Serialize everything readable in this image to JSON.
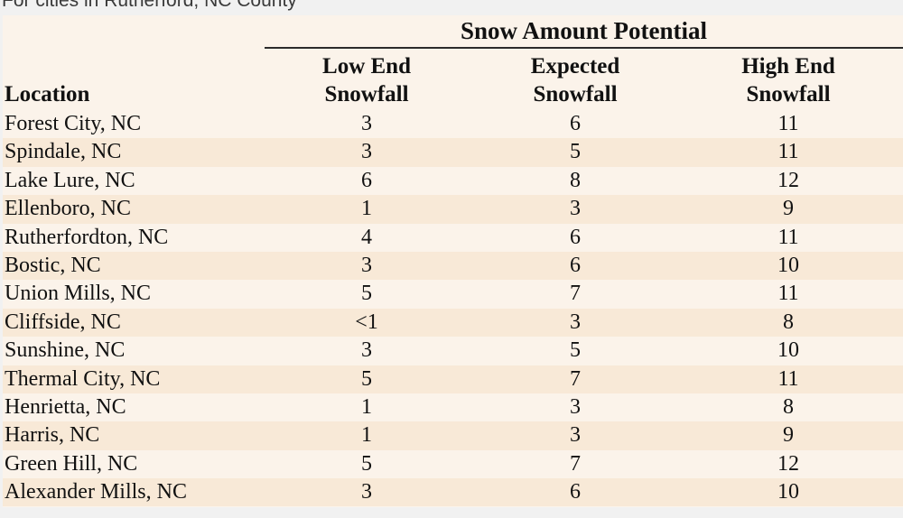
{
  "caption": "For cities in Rutherford, NC County",
  "table": {
    "group_header": "Snow Amount Potential",
    "location_header": "Location",
    "columns": [
      {
        "line1": "Low End",
        "line2": "Snowfall"
      },
      {
        "line1": "Expected",
        "line2": "Snowfall"
      },
      {
        "line1": "High End",
        "line2": "Snowfall"
      }
    ],
    "rows": [
      {
        "location": "Forest City, NC",
        "low": "3",
        "expected": "6",
        "high": "11"
      },
      {
        "location": "Spindale, NC",
        "low": "3",
        "expected": "5",
        "high": "11"
      },
      {
        "location": "Lake Lure, NC",
        "low": "6",
        "expected": "8",
        "high": "12"
      },
      {
        "location": "Ellenboro, NC",
        "low": "1",
        "expected": "3",
        "high": "9"
      },
      {
        "location": "Rutherfordton, NC",
        "low": "4",
        "expected": "6",
        "high": "11"
      },
      {
        "location": "Bostic, NC",
        "low": "3",
        "expected": "6",
        "high": "10"
      },
      {
        "location": "Union Mills, NC",
        "low": "5",
        "expected": "7",
        "high": "11"
      },
      {
        "location": "Cliffside, NC",
        "low": "<1",
        "expected": "3",
        "high": "8"
      },
      {
        "location": "Sunshine, NC",
        "low": "3",
        "expected": "5",
        "high": "10"
      },
      {
        "location": "Thermal City, NC",
        "low": "5",
        "expected": "7",
        "high": "11"
      },
      {
        "location": "Henrietta, NC",
        "low": "1",
        "expected": "3",
        "high": "8"
      },
      {
        "location": "Harris, NC",
        "low": "1",
        "expected": "3",
        "high": "9"
      },
      {
        "location": "Green Hill, NC",
        "low": "5",
        "expected": "7",
        "high": "12"
      },
      {
        "location": "Alexander Mills, NC",
        "low": "3",
        "expected": "6",
        "high": "10"
      }
    ]
  }
}
